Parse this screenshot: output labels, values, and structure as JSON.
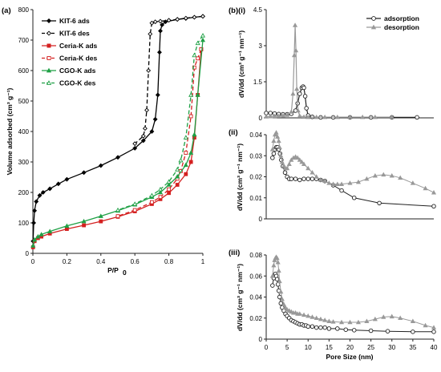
{
  "chart_data": [
    {
      "id": "a",
      "panel_label": "(a)",
      "type": "line",
      "xlabel": "P/P",
      "xlabel_sub": "0",
      "ylabel": "Volume adsorbed (cm³ g⁻¹)",
      "xlim": [
        0,
        1
      ],
      "ylim": [
        0,
        800
      ],
      "xticks": [
        0,
        0.2,
        0.4,
        0.6,
        0.8,
        1
      ],
      "xtick_labels": [
        "0",
        "0.2",
        "0.4",
        "0.6",
        "0.8",
        "1"
      ],
      "yticks": [
        0,
        100,
        200,
        300,
        400,
        500,
        600,
        700,
        800
      ],
      "ytick_labels": [
        "0",
        "100",
        "200",
        "300",
        "400",
        "500",
        "600",
        "700",
        "800"
      ],
      "legend_position": "top-left",
      "series": [
        {
          "name": "KIT-6 ads",
          "color": "#000000",
          "marker": "diamond-filled",
          "dash": false,
          "x": [
            0.001,
            0.005,
            0.01,
            0.02,
            0.04,
            0.06,
            0.1,
            0.15,
            0.2,
            0.3,
            0.4,
            0.5,
            0.6,
            0.65,
            0.7,
            0.72,
            0.735,
            0.745,
            0.75,
            0.76,
            0.78,
            0.85,
            0.9,
            0.95,
            1.0
          ],
          "y": [
            40,
            100,
            140,
            170,
            190,
            200,
            212,
            228,
            243,
            265,
            288,
            315,
            345,
            370,
            400,
            440,
            520,
            660,
            730,
            750,
            760,
            768,
            771,
            775,
            778
          ]
        },
        {
          "name": "KIT-6 des",
          "color": "#000000",
          "marker": "diamond-open",
          "dash": true,
          "x": [
            1.0,
            0.95,
            0.9,
            0.85,
            0.8,
            0.75,
            0.72,
            0.7,
            0.69,
            0.68,
            0.67,
            0.66,
            0.65,
            0.6
          ],
          "y": [
            778,
            775,
            772,
            768,
            765,
            762,
            760,
            756,
            720,
            600,
            470,
            410,
            385,
            360
          ]
        },
        {
          "name": "Ceria-K ads",
          "color": "#d42020",
          "marker": "square-filled",
          "dash": false,
          "x": [
            0.001,
            0.01,
            0.03,
            0.05,
            0.1,
            0.2,
            0.3,
            0.4,
            0.5,
            0.6,
            0.7,
            0.75,
            0.8,
            0.85,
            0.9,
            0.93,
            0.95,
            0.97,
            0.99
          ],
          "y": [
            20,
            40,
            50,
            55,
            65,
            80,
            92,
            105,
            120,
            138,
            162,
            178,
            198,
            225,
            260,
            300,
            380,
            520,
            670
          ]
        },
        {
          "name": "Ceria-K des",
          "color": "#d42020",
          "marker": "square-open",
          "dash": true,
          "x": [
            0.99,
            0.97,
            0.95,
            0.93,
            0.9,
            0.87,
            0.85,
            0.8,
            0.75,
            0.7,
            0.6,
            0.5
          ],
          "y": [
            670,
            640,
            610,
            450,
            330,
            270,
            245,
            210,
            185,
            168,
            142,
            122
          ]
        },
        {
          "name": "CGO-K ads",
          "color": "#1fa045",
          "marker": "triangle-filled",
          "dash": false,
          "x": [
            0.001,
            0.01,
            0.03,
            0.05,
            0.1,
            0.2,
            0.3,
            0.4,
            0.5,
            0.6,
            0.7,
            0.75,
            0.8,
            0.85,
            0.9,
            0.93,
            0.95,
            0.97,
            1.0
          ],
          "y": [
            25,
            45,
            55,
            62,
            72,
            90,
            105,
            122,
            140,
            160,
            185,
            200,
            225,
            252,
            290,
            330,
            390,
            520,
            700
          ]
        },
        {
          "name": "CGO-K des",
          "color": "#1fa045",
          "marker": "triangle-open",
          "dash": true,
          "x": [
            1.0,
            0.97,
            0.95,
            0.93,
            0.9,
            0.87,
            0.85,
            0.8,
            0.75,
            0.7,
            0.6,
            0.5
          ],
          "y": [
            715,
            690,
            650,
            520,
            380,
            305,
            275,
            235,
            210,
            190,
            162,
            142
          ]
        }
      ]
    },
    {
      "id": "b-i",
      "panel_label": "(b)(i)",
      "type": "line",
      "xlabel": "",
      "ylabel": "dV/dd (cm³ g⁻¹ nm⁻¹)",
      "xlim": [
        0,
        40
      ],
      "ylim": [
        0,
        4.5
      ],
      "xticks": [],
      "xtick_labels": [],
      "yticks": [
        0,
        1.5,
        3,
        4.5
      ],
      "ytick_labels": [
        "0",
        "1.5",
        "3",
        "4.5"
      ],
      "legend_position": "top-right",
      "series": [
        {
          "name": "adsorption",
          "color": "#222222",
          "marker": "circle-open",
          "x": [
            0,
            1,
            2,
            3,
            4,
            5,
            6,
            7,
            7.5,
            8,
            8.5,
            8.8,
            9,
            9.3,
            9.6,
            10,
            11,
            13,
            16,
            20,
            25,
            30,
            36
          ],
          "y": [
            0.2,
            0.2,
            0.18,
            0.16,
            0.15,
            0.15,
            0.17,
            0.3,
            0.6,
            1.0,
            1.25,
            1.3,
            1.25,
            0.9,
            0.4,
            0.1,
            0.04,
            0.02,
            0.02,
            0.02,
            0.02,
            0.02,
            0.02
          ]
        },
        {
          "name": "desorption",
          "color": "#999999",
          "marker": "triangle-filled",
          "x": [
            0,
            1,
            2,
            3,
            4,
            5,
            6,
            6.4,
            6.7,
            6.9,
            7.1,
            7.3,
            7.6,
            8,
            9,
            10,
            12,
            14,
            17,
            20,
            23,
            26,
            30
          ],
          "y": [
            0.05,
            0.06,
            0.07,
            0.08,
            0.1,
            0.12,
            0.25,
            1.0,
            2.6,
            3.85,
            2.8,
            1.2,
            0.3,
            0.08,
            0.04,
            0.03,
            0.03,
            0.03,
            0.03,
            0.03,
            0.03,
            0.03,
            0.03
          ]
        }
      ]
    },
    {
      "id": "b-ii",
      "panel_label": "(ii)",
      "type": "line",
      "xlabel": "",
      "ylabel": "dV/dd (cm³ g⁻¹ nm⁻¹)",
      "xlim": [
        0,
        40
      ],
      "ylim": [
        0,
        0.04
      ],
      "xticks": [],
      "xtick_labels": [],
      "yticks": [
        0,
        0.01,
        0.02,
        0.03,
        0.04
      ],
      "ytick_labels": [
        "0",
        "0.01",
        "0.02",
        "0.03",
        "0.04"
      ],
      "series": [
        {
          "name": "adsorption",
          "color": "#222222",
          "marker": "circle-open",
          "x": [
            1.5,
            1.8,
            2.1,
            2.4,
            2.7,
            3.0,
            3.3,
            3.6,
            4.0,
            4.5,
            5,
            5.5,
            6,
            7,
            8,
            9,
            10,
            11,
            12,
            13,
            14,
            16,
            18,
            21,
            27,
            40
          ],
          "y": [
            0.029,
            0.031,
            0.033,
            0.034,
            0.034,
            0.033,
            0.031,
            0.028,
            0.025,
            0.022,
            0.02,
            0.019,
            0.019,
            0.019,
            0.0185,
            0.019,
            0.019,
            0.019,
            0.019,
            0.0185,
            0.018,
            0.016,
            0.0135,
            0.01,
            0.0075,
            0.006
          ]
        },
        {
          "name": "desorption",
          "color": "#999999",
          "marker": "triangle-filled",
          "x": [
            1.5,
            1.8,
            2.1,
            2.4,
            2.7,
            3.0,
            3.2,
            3.5,
            3.8,
            4.2,
            4.6,
            5,
            5.5,
            6,
            6.5,
            7,
            7.5,
            8,
            8.5,
            9,
            10,
            11,
            12,
            13,
            14,
            15,
            16,
            17,
            18,
            20,
            22,
            24,
            26,
            28,
            30,
            32,
            35,
            38,
            40
          ],
          "y": [
            0.033,
            0.037,
            0.04,
            0.041,
            0.039,
            0.037,
            0.034,
            0.03,
            0.027,
            0.025,
            0.024,
            0.024,
            0.026,
            0.028,
            0.029,
            0.0295,
            0.029,
            0.028,
            0.027,
            0.026,
            0.024,
            0.022,
            0.02,
            0.0185,
            0.018,
            0.017,
            0.0165,
            0.0165,
            0.0165,
            0.017,
            0.0175,
            0.019,
            0.0205,
            0.021,
            0.0205,
            0.0195,
            0.017,
            0.0145,
            0.0125
          ]
        }
      ]
    },
    {
      "id": "b-iii",
      "panel_label": "(iii)",
      "type": "line",
      "xlabel": "Pore Size (nm)",
      "ylabel": "dV/dd (cm³ g⁻¹ nm⁻¹)",
      "xlim": [
        0,
        40
      ],
      "ylim": [
        0,
        0.08
      ],
      "xticks": [
        0,
        5,
        10,
        15,
        20,
        25,
        30,
        35,
        40
      ],
      "xtick_labels": [
        "0",
        "5",
        "10",
        "15",
        "20",
        "25",
        "30",
        "35",
        "40"
      ],
      "yticks": [
        0,
        0.02,
        0.04,
        0.06,
        0.08
      ],
      "ytick_labels": [
        "0",
        "0.02",
        "0.04",
        "0.06",
        "0.08"
      ],
      "series": [
        {
          "name": "adsorption",
          "color": "#222222",
          "marker": "circle-open",
          "x": [
            1.5,
            1.8,
            2.0,
            2.2,
            2.4,
            2.6,
            2.8,
            3.0,
            3.2,
            3.5,
            3.8,
            4.2,
            4.6,
            5,
            5.5,
            6,
            6.5,
            7,
            7.5,
            8,
            8.5,
            9,
            9.5,
            10,
            11,
            12,
            13,
            14,
            15,
            17,
            19,
            21,
            25,
            29,
            35,
            40
          ],
          "y": [
            0.051,
            0.058,
            0.061,
            0.062,
            0.06,
            0.057,
            0.052,
            0.046,
            0.04,
            0.034,
            0.03,
            0.027,
            0.024,
            0.022,
            0.02,
            0.018,
            0.017,
            0.016,
            0.015,
            0.014,
            0.014,
            0.013,
            0.013,
            0.012,
            0.012,
            0.011,
            0.011,
            0.011,
            0.01,
            0.01,
            0.009,
            0.0085,
            0.008,
            0.0075,
            0.007,
            0.007
          ]
        },
        {
          "name": "desorption",
          "color": "#999999",
          "marker": "triangle-filled",
          "x": [
            1.5,
            1.8,
            2.0,
            2.2,
            2.4,
            2.6,
            2.8,
            3.0,
            3.2,
            3.5,
            3.8,
            4.2,
            4.6,
            5,
            5.5,
            6,
            6.5,
            7,
            7.5,
            8,
            9,
            10,
            11,
            12,
            13,
            14,
            15,
            16,
            18,
            20,
            22,
            24,
            26,
            28,
            30,
            32,
            35,
            38,
            40
          ],
          "y": [
            0.06,
            0.07,
            0.075,
            0.077,
            0.078,
            0.077,
            0.073,
            0.065,
            0.055,
            0.045,
            0.038,
            0.033,
            0.03,
            0.028,
            0.027,
            0.026,
            0.025,
            0.025,
            0.024,
            0.024,
            0.023,
            0.022,
            0.021,
            0.02,
            0.019,
            0.018,
            0.017,
            0.0165,
            0.016,
            0.016,
            0.016,
            0.017,
            0.019,
            0.021,
            0.0215,
            0.02,
            0.017,
            0.013,
            0.011
          ]
        }
      ]
    }
  ]
}
